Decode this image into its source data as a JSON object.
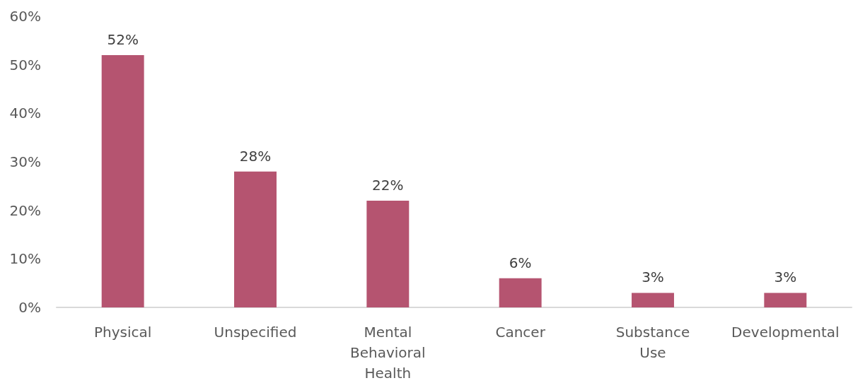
{
  "chart_data": {
    "type": "bar",
    "categories": [
      "Physical",
      "Unspecified",
      "Mental Behavioral Health",
      "Cancer",
      "Substance Use",
      "Developmental"
    ],
    "values": [
      52,
      28,
      22,
      6,
      3,
      3
    ],
    "color": "#b55470",
    "value_labels": [
      "52%",
      "28%",
      "22%",
      "6%",
      "3%",
      "3%"
    ],
    "ylim": [
      0,
      60
    ],
    "yticks": [
      {
        "value": 0,
        "label": "0%"
      },
      {
        "value": 10,
        "label": "10%"
      },
      {
        "value": 20,
        "label": "20%"
      },
      {
        "value": 30,
        "label": "30%"
      },
      {
        "value": 40,
        "label": "40%"
      },
      {
        "value": 50,
        "label": "50%"
      },
      {
        "value": 60,
        "label": "60%"
      }
    ],
    "grid": false
  }
}
